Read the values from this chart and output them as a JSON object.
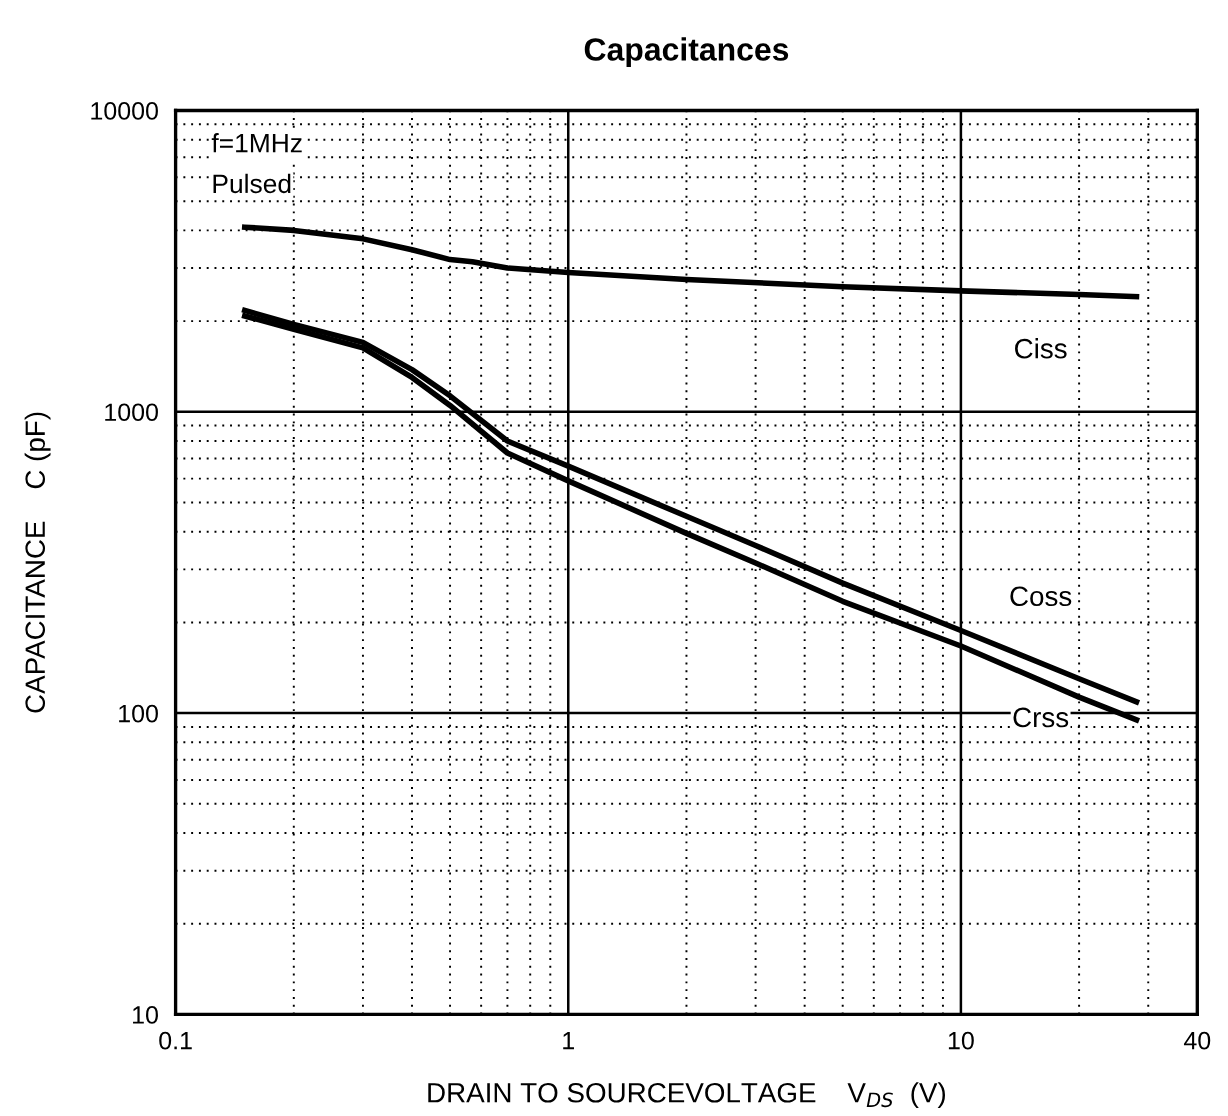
{
  "chart_data": {
    "type": "line",
    "title": "Capacitances",
    "xlabel": "DRAIN TO SOURCEVOLTAGE    V$_{DS}$  (V)",
    "ylabel": "CAPACITANCE    C (pF)",
    "log": "xy",
    "xlim": [
      0.1,
      40
    ],
    "ylim": [
      10,
      10000
    ],
    "xticks": [
      0.1,
      1,
      10,
      40
    ],
    "yticks": [
      10,
      100,
      1000,
      10000
    ],
    "grid": true,
    "legend": false,
    "marker": "none",
    "line_style": "solid",
    "annotations": [
      "f=1MHz",
      "Pulsed"
    ],
    "series": [
      {
        "name": "Ciss",
        "color": "#000000",
        "x": [
          0.15,
          0.2,
          0.3,
          0.4,
          0.5,
          0.57,
          0.7,
          1,
          2,
          5,
          10,
          20,
          28
        ],
        "values": [
          4100,
          4000,
          3750,
          3450,
          3200,
          3150,
          3000,
          2900,
          2750,
          2600,
          2520,
          2450,
          2410
        ]
      },
      {
        "name": "Coss",
        "color": "#000000",
        "x": [
          0.15,
          0.2,
          0.3,
          0.4,
          0.5,
          0.7,
          1,
          2,
          3,
          5,
          10,
          20,
          28
        ],
        "values": [
          2170,
          1950,
          1700,
          1380,
          1130,
          800,
          660,
          450,
          360,
          270,
          188,
          130,
          109
        ]
      },
      {
        "name": "Crss",
        "color": "#000000",
        "x": [
          0.15,
          0.2,
          0.3,
          0.4,
          0.5,
          0.7,
          1,
          2,
          3,
          5,
          10,
          20,
          28
        ],
        "values": [
          2080,
          1880,
          1630,
          1300,
          1050,
          730,
          590,
          395,
          315,
          235,
          167,
          113,
          95
        ]
      }
    ]
  }
}
